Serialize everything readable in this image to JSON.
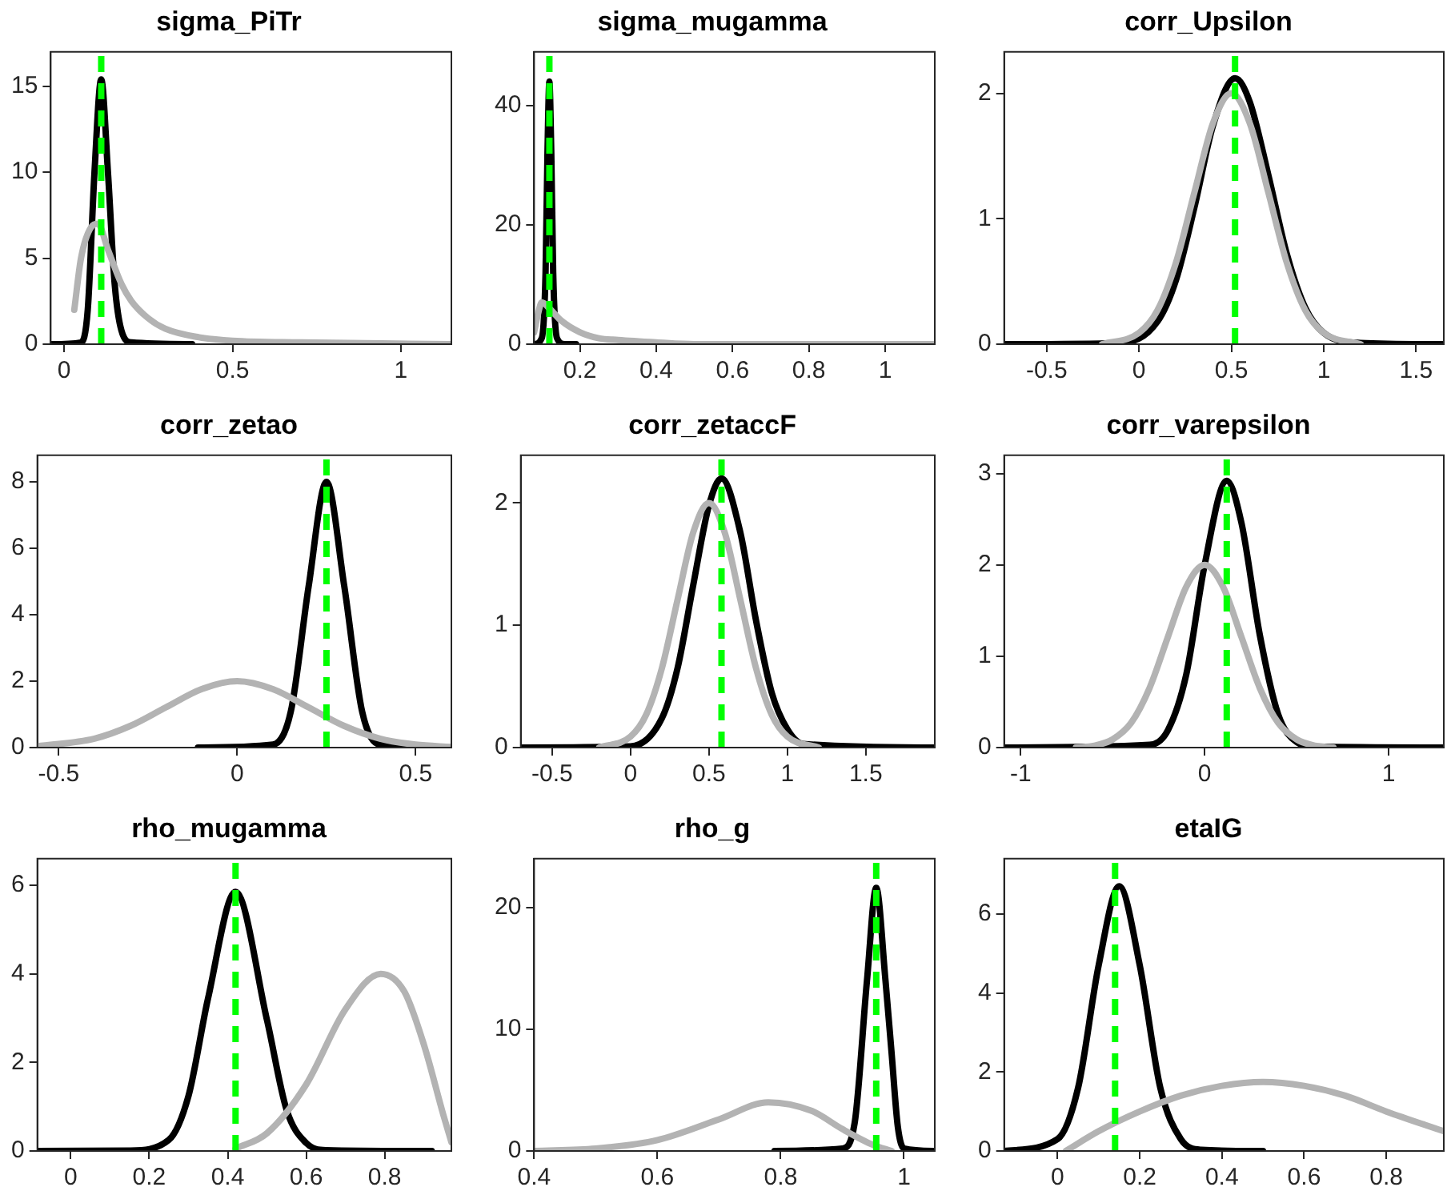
{
  "chart_data": [
    {
      "type": "line",
      "title": "sigma_PiTr",
      "xlim": [
        -0.04,
        1.15
      ],
      "xticks": [
        0,
        0.5,
        1
      ],
      "ylim": [
        0,
        17
      ],
      "yticks": [
        0,
        5,
        10,
        15
      ],
      "grid": false,
      "legend": false,
      "marker": "none",
      "line_style": "solid",
      "ref_lines": [
        {
          "axis": "x",
          "value": 0.11,
          "color": "#00ff00",
          "line_style": "dashed"
        }
      ],
      "series": [
        {
          "color": "#b3b3b3",
          "x": [
            0.03,
            0.05,
            0.08,
            0.1,
            0.13,
            0.17,
            0.2,
            0.25,
            0.3,
            0.4,
            0.5,
            0.7,
            1.15
          ],
          "values": [
            2,
            5,
            6.8,
            7,
            5.5,
            3.5,
            2.5,
            1.5,
            0.9,
            0.4,
            0.2,
            0.1,
            0
          ]
        },
        {
          "color": "#000000",
          "x": [
            -0.04,
            0.05,
            0.07,
            0.09,
            0.11,
            0.13,
            0.15,
            0.17,
            0.2,
            0.38
          ],
          "values": [
            0,
            0.1,
            2,
            10,
            15.4,
            10,
            3.5,
            0.8,
            0.1,
            0
          ]
        }
      ]
    },
    {
      "type": "line",
      "title": "sigma_mugamma",
      "xlim": [
        0.08,
        1.13
      ],
      "xticks": [
        0.2,
        0.4,
        0.6,
        0.8,
        1
      ],
      "ylim": [
        0,
        49
      ],
      "yticks": [
        0,
        20,
        40
      ],
      "grid": false,
      "legend": false,
      "marker": "none",
      "line_style": "solid",
      "ref_lines": [
        {
          "axis": "x",
          "value": 0.12,
          "color": "#00ff00",
          "line_style": "dashed"
        }
      ],
      "series": [
        {
          "color": "#b3b3b3",
          "x": [
            0.08,
            0.09,
            0.1,
            0.12,
            0.15,
            0.2,
            0.25,
            0.3,
            0.4,
            0.5,
            0.7,
            1.13
          ],
          "values": [
            2,
            5,
            7,
            6,
            4,
            2,
            1,
            0.7,
            0.3,
            0,
            0,
            0
          ]
        },
        {
          "color": "#000000",
          "x": [
            0.08,
            0.1,
            0.11,
            0.115,
            0.12,
            0.125,
            0.13,
            0.14,
            0.16,
            0.19
          ],
          "values": [
            0,
            1,
            12,
            32,
            44,
            32,
            12,
            1,
            0,
            0
          ]
        }
      ]
    },
    {
      "type": "line",
      "title": "corr_Upsilon",
      "xlim": [
        -0.73,
        1.65
      ],
      "xticks": [
        -0.5,
        0,
        0.5,
        1,
        1.5
      ],
      "ylim": [
        0,
        2.33
      ],
      "yticks": [
        0,
        1,
        2
      ],
      "grid": false,
      "legend": false,
      "marker": "none",
      "line_style": "solid",
      "ref_lines": [
        {
          "axis": "x",
          "value": 0.52,
          "color": "#00ff00",
          "line_style": "dashed"
        }
      ],
      "series": [
        {
          "color": "#b3b3b3",
          "x": [
            -0.2,
            0,
            0.1,
            0.2,
            0.3,
            0.4,
            0.5,
            0.6,
            0.7,
            0.8,
            0.9,
            1.0,
            1.2
          ],
          "values": [
            0,
            0.09,
            0.27,
            0.65,
            1.21,
            1.76,
            2.0,
            1.76,
            1.21,
            0.65,
            0.27,
            0.09,
            0
          ]
        },
        {
          "color": "#000000",
          "x": [
            -0.73,
            -0.1,
            0.1,
            0.2,
            0.3,
            0.4,
            0.52,
            0.6,
            0.7,
            0.8,
            0.9,
            1.0,
            1.2,
            1.65
          ],
          "values": [
            0,
            0.01,
            0.18,
            0.51,
            1.09,
            1.74,
            2.12,
            1.93,
            1.35,
            0.72,
            0.29,
            0.09,
            0.01,
            0
          ]
        }
      ]
    },
    {
      "type": "line",
      "title": "corr_zetao",
      "xlim": [
        -0.56,
        0.6
      ],
      "xticks": [
        -0.5,
        0,
        0.5
      ],
      "ylim": [
        0,
        8.8
      ],
      "yticks": [
        0,
        2,
        4,
        6,
        8
      ],
      "grid": false,
      "legend": false,
      "marker": "none",
      "line_style": "solid",
      "ref_lines": [
        {
          "axis": "x",
          "value": 0.25,
          "color": "#00ff00",
          "line_style": "dashed"
        }
      ],
      "series": [
        {
          "color": "#b3b3b3",
          "x": [
            -0.56,
            -0.4,
            -0.3,
            -0.2,
            -0.1,
            0,
            0.1,
            0.2,
            0.3,
            0.4,
            0.5,
            0.6
          ],
          "values": [
            0.04,
            0.27,
            0.65,
            1.21,
            1.76,
            2.0,
            1.76,
            1.21,
            0.65,
            0.27,
            0.09,
            0.02
          ]
        },
        {
          "color": "#000000",
          "x": [
            -0.11,
            0.1,
            0.15,
            0.2,
            0.25,
            0.3,
            0.35,
            0.4,
            0.6
          ],
          "values": [
            0,
            0.09,
            1.08,
            4.85,
            8,
            4.85,
            1.08,
            0.09,
            0
          ]
        }
      ]
    },
    {
      "type": "line",
      "title": "corr_zetaccF",
      "xlim": [
        -0.7,
        1.94
      ],
      "xticks": [
        -0.5,
        0,
        0.5,
        1,
        1.5
      ],
      "ylim": [
        0,
        2.39
      ],
      "yticks": [
        0,
        1,
        2
      ],
      "grid": false,
      "legend": false,
      "marker": "none",
      "line_style": "solid",
      "ref_lines": [
        {
          "axis": "x",
          "value": 0.58,
          "color": "#00ff00",
          "line_style": "dashed"
        }
      ],
      "series": [
        {
          "color": "#b3b3b3",
          "x": [
            -0.2,
            0,
            0.1,
            0.2,
            0.3,
            0.4,
            0.5,
            0.6,
            0.7,
            0.8,
            0.9,
            1.0,
            1.2
          ],
          "values": [
            0,
            0.09,
            0.27,
            0.65,
            1.21,
            1.76,
            2.0,
            1.76,
            1.21,
            0.65,
            0.27,
            0.09,
            0
          ]
        },
        {
          "color": "#000000",
          "x": [
            -0.7,
            0,
            0.2,
            0.3,
            0.4,
            0.5,
            0.58,
            0.7,
            0.8,
            0.9,
            1.0,
            1.1,
            1.94
          ],
          "values": [
            0,
            0.01,
            0.24,
            0.65,
            1.33,
            1.98,
            2.2,
            1.76,
            1.04,
            0.45,
            0.15,
            0.03,
            0
          ]
        }
      ]
    },
    {
      "type": "line",
      "title": "corr_varepsilon",
      "xlim": [
        -1.09,
        1.3
      ],
      "xticks": [
        -1,
        0,
        1
      ],
      "ylim": [
        0,
        3.2
      ],
      "yticks": [
        0,
        1,
        2,
        3
      ],
      "grid": false,
      "legend": false,
      "marker": "none",
      "line_style": "solid",
      "ref_lines": [
        {
          "axis": "x",
          "value": 0.12,
          "color": "#00ff00",
          "line_style": "dashed"
        }
      ],
      "series": [
        {
          "color": "#b3b3b3",
          "x": [
            -0.7,
            -0.6,
            -0.5,
            -0.4,
            -0.3,
            -0.2,
            -0.1,
            0,
            0.1,
            0.2,
            0.3,
            0.4,
            0.5,
            0.6,
            0.7
          ],
          "values": [
            0,
            0.02,
            0.09,
            0.27,
            0.65,
            1.21,
            1.76,
            2.0,
            1.76,
            1.21,
            0.65,
            0.27,
            0.09,
            0.02,
            0
          ]
        },
        {
          "color": "#000000",
          "x": [
            -1.09,
            -0.3,
            -0.2,
            -0.1,
            0,
            0.12,
            0.2,
            0.3,
            0.4,
            0.5,
            0.6,
            1.3
          ],
          "values": [
            0,
            0.03,
            0.19,
            0.8,
            2.0,
            2.92,
            2.46,
            1.23,
            0.36,
            0.06,
            0.01,
            0
          ]
        }
      ]
    },
    {
      "type": "line",
      "title": "rho_mugamma",
      "xlim": [
        -0.085,
        0.97
      ],
      "xticks": [
        0,
        0.2,
        0.4,
        0.6,
        0.8
      ],
      "ylim": [
        0,
        6.6
      ],
      "yticks": [
        0,
        2,
        4,
        6
      ],
      "grid": false,
      "legend": false,
      "marker": "none",
      "line_style": "solid",
      "ref_lines": [
        {
          "axis": "x",
          "value": 0.42,
          "color": "#00ff00",
          "line_style": "dashed"
        }
      ],
      "series": [
        {
          "color": "#b3b3b3",
          "x": [
            0.42,
            0.5,
            0.6,
            0.7,
            0.79,
            0.85,
            0.9,
            0.95,
            0.97
          ],
          "values": [
            0.05,
            0.4,
            1.5,
            3.2,
            4.0,
            3.6,
            2.4,
            0.8,
            0.2
          ]
        },
        {
          "color": "#000000",
          "x": [
            -0.085,
            0.15,
            0.25,
            0.3,
            0.35,
            0.42,
            0.5,
            0.55,
            0.6,
            0.65,
            0.92
          ],
          "values": [
            0,
            0.01,
            0.25,
            1.24,
            3.45,
            5.85,
            2.96,
            0.93,
            0.18,
            0.02,
            0
          ]
        }
      ]
    },
    {
      "type": "line",
      "title": "rho_g",
      "xlim": [
        0.4,
        1.05
      ],
      "xticks": [
        0.4,
        0.6,
        0.8,
        1
      ],
      "ylim": [
        0,
        24
      ],
      "yticks": [
        0,
        10,
        20
      ],
      "grid": false,
      "legend": false,
      "marker": "none",
      "line_style": "solid",
      "ref_lines": [
        {
          "axis": "x",
          "value": 0.955,
          "color": "#00ff00",
          "line_style": "dashed"
        }
      ],
      "series": [
        {
          "color": "#b3b3b3",
          "x": [
            0.4,
            0.5,
            0.6,
            0.7,
            0.78,
            0.85,
            0.9,
            0.95,
            0.98
          ],
          "values": [
            0,
            0.2,
            0.9,
            2.6,
            4.0,
            3.3,
            1.8,
            0.5,
            0
          ]
        },
        {
          "color": "#000000",
          "x": [
            0.79,
            0.9,
            0.92,
            0.94,
            0.955,
            0.97,
            0.98,
            0.99,
            1.0,
            1.05
          ],
          "values": [
            0,
            0.2,
            2.3,
            14,
            21.6,
            14,
            8,
            2.0,
            0.2,
            0
          ]
        }
      ]
    },
    {
      "type": "line",
      "title": "etaIG",
      "xlim": [
        -0.13,
        0.94
      ],
      "xticks": [
        0,
        0.2,
        0.4,
        0.6,
        0.8
      ],
      "ylim": [
        0,
        7.4
      ],
      "yticks": [
        0,
        2,
        4,
        6
      ],
      "grid": false,
      "legend": false,
      "marker": "none",
      "line_style": "solid",
      "ref_lines": [
        {
          "axis": "x",
          "value": 0.14,
          "color": "#00ff00",
          "line_style": "dashed"
        }
      ],
      "series": [
        {
          "color": "#b3b3b3",
          "x": [
            0.02,
            0.1,
            0.2,
            0.3,
            0.4,
            0.5,
            0.6,
            0.7,
            0.8,
            0.94
          ],
          "values": [
            0,
            0.5,
            1.0,
            1.4,
            1.65,
            1.75,
            1.65,
            1.4,
            1.0,
            0.5
          ]
        },
        {
          "color": "#000000",
          "x": [
            -0.13,
            0,
            0.05,
            0.1,
            0.15,
            0.2,
            0.25,
            0.3,
            0.35,
            0.5
          ],
          "values": [
            0,
            0.3,
            1.6,
            4.7,
            6.7,
            4.7,
            1.6,
            0.3,
            0.03,
            0
          ]
        }
      ]
    }
  ]
}
